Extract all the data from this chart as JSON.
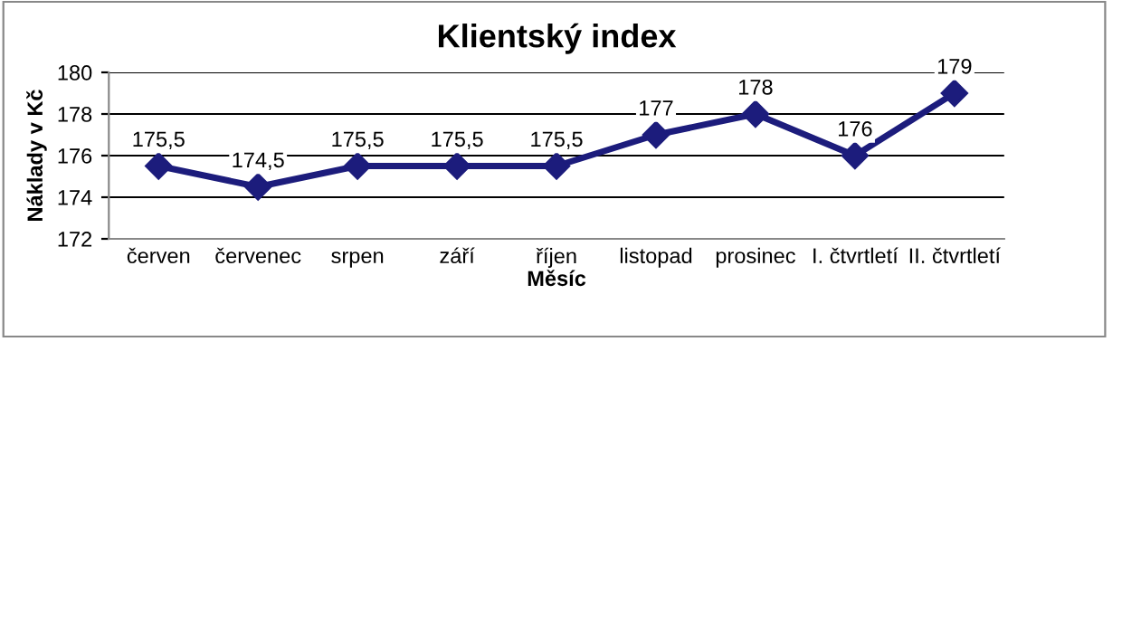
{
  "chart_data": {
    "type": "line",
    "title": "Klientský index",
    "xlabel": "Měsíc",
    "ylabel": "Náklady v Kč",
    "categories": [
      "červen",
      "červenec",
      "srpen",
      "září",
      "říjen",
      "listopad",
      "prosinec",
      "I. čtvrtletí",
      "II. čtvrtletí"
    ],
    "series": [
      {
        "color": "#1c1c7c",
        "values": [
          175.5,
          174.5,
          175.5,
          175.5,
          175.5,
          177,
          178,
          176,
          179
        ],
        "value_labels": [
          "175,5",
          "174,5",
          "175,5",
          "175,5",
          "175,5",
          "177",
          "178",
          "176",
          "179"
        ]
      }
    ],
    "ylim": [
      172,
      180
    ],
    "yticks": [
      172,
      174,
      176,
      178,
      180
    ],
    "grid": "y",
    "marker": "diamond",
    "line_style": "solid"
  }
}
